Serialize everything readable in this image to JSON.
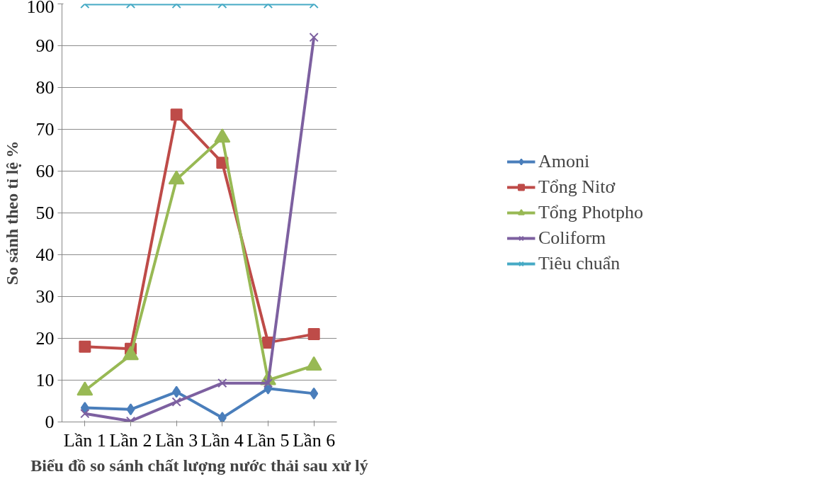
{
  "chart_data": {
    "type": "line",
    "xlabel": "Biểu đồ so sánh chất lượng nước thải sau xử lý",
    "ylabel": "So sánh theo tỉ lệ %",
    "categories": [
      "Lần 1",
      "Lần 2",
      "Lần 3",
      "Lần 4",
      "Lần 5",
      "Lần 6"
    ],
    "ylim": [
      0,
      100
    ],
    "yticks": [
      0,
      10,
      20,
      30,
      40,
      50,
      60,
      70,
      80,
      90,
      100
    ],
    "grid": "y",
    "legend": "right",
    "line_style": "solid",
    "series": [
      {
        "name": "Amoni",
        "color": "#4a7ebb",
        "marker": "diamond",
        "values": [
          3.4,
          3,
          7.2,
          1,
          8,
          6.8
        ]
      },
      {
        "name": "Tổng Nitơ",
        "color": "#be4b48",
        "marker": "square",
        "values": [
          18,
          17.5,
          73.5,
          62,
          19,
          21
        ]
      },
      {
        "name": "Tổng Photpho",
        "color": "#98b954",
        "marker": "triangle",
        "values": [
          7.5,
          16,
          58,
          68,
          10,
          13.5
        ]
      },
      {
        "name": "Coliform",
        "color": "#7d60a0",
        "marker": "cross",
        "values": [
          2,
          0.2,
          4.8,
          9.3,
          9.3,
          92
        ]
      },
      {
        "name": "Tiêu chuẩn",
        "color": "#46aac5",
        "marker": "cross",
        "values": [
          100,
          100,
          100,
          100,
          100,
          100
        ]
      }
    ]
  }
}
